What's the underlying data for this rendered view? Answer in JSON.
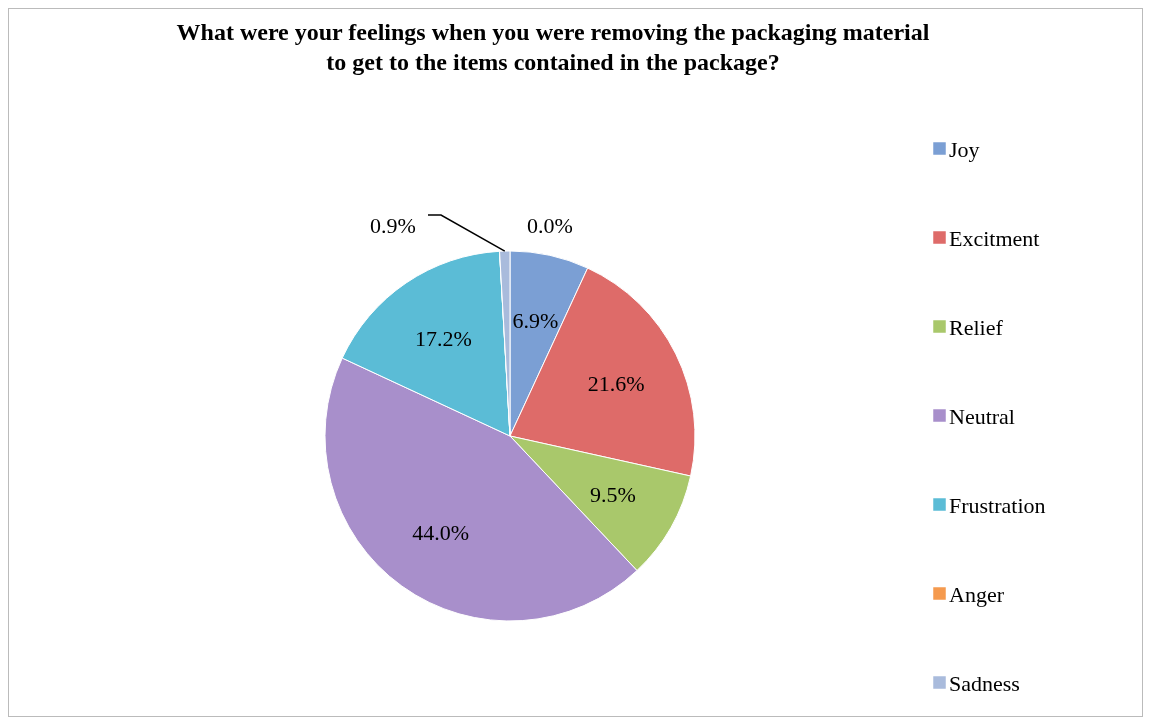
{
  "chart_data": {
    "type": "pie",
    "title": "What were your feelings when you were removing the packaging material to get to the items contained in the package?",
    "categories": [
      "Joy",
      "Excitment",
      "Relief",
      "Neutral",
      "Frustration",
      "Anger",
      "Sadness"
    ],
    "values": [
      6.9,
      21.6,
      9.5,
      44.0,
      17.2,
      0.0,
      0.9
    ],
    "value_labels": [
      "6.9%",
      "21.6%",
      "9.5%",
      "44.0%",
      "17.2%",
      "0.0%",
      "0.9%"
    ],
    "colors": [
      "#7b9fd4",
      "#de6b69",
      "#a9c86b",
      "#a88fcb",
      "#5bbcd6",
      "#f59a4e",
      "#a9bbdc"
    ],
    "legend": "right"
  }
}
